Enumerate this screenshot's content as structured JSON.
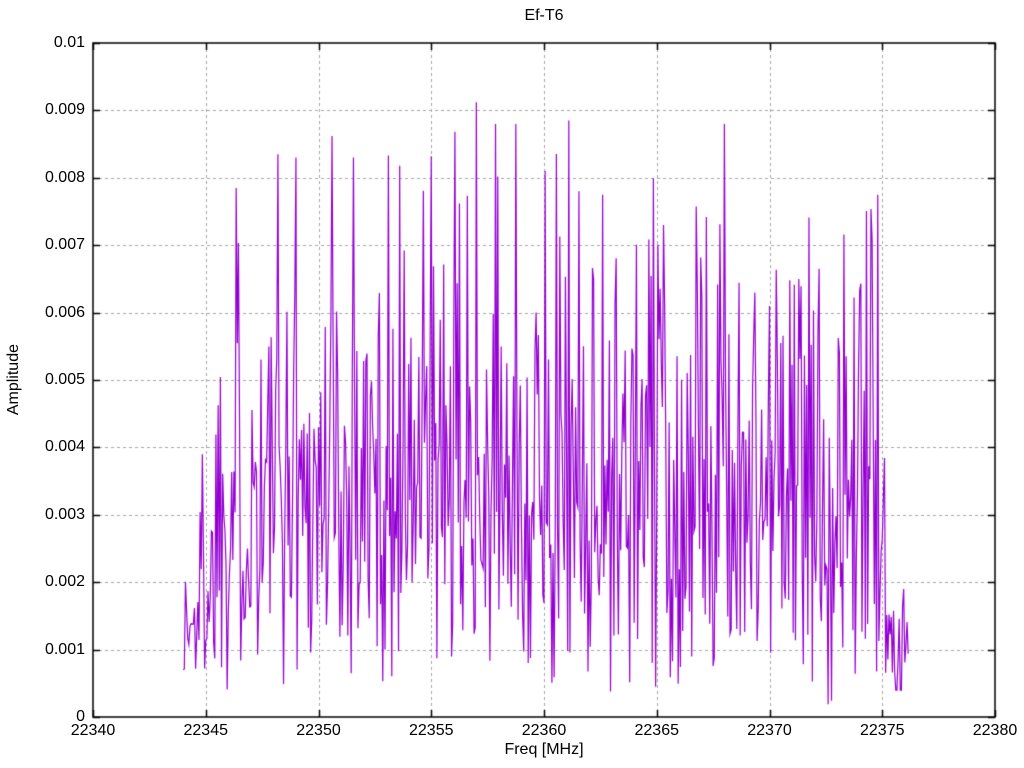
{
  "window": {
    "background": "#ffffff"
  },
  "chart_data": {
    "type": "line",
    "title": "Ef-T6",
    "xlabel": "Freq [MHz]",
    "ylabel": "Amplitude",
    "xlim": [
      22340,
      22380
    ],
    "ylim": [
      0,
      0.01
    ],
    "x_tick_values": [
      22340,
      22345,
      22350,
      22355,
      22360,
      22365,
      22370,
      22375,
      22380
    ],
    "x_tick_labels": [
      "22340",
      "22345",
      "22350",
      "22355",
      "22360",
      "22365",
      "22370",
      "22375",
      "22380"
    ],
    "y_tick_values": [
      0,
      0.001,
      0.002,
      0.003,
      0.004,
      0.005,
      0.006,
      0.007,
      0.008,
      0.009,
      0.01
    ],
    "y_tick_labels": [
      "0",
      "0.001",
      "0.002",
      "0.003",
      "0.004",
      "0.005",
      "0.006",
      "0.007",
      "0.008",
      "0.009",
      "0.01"
    ],
    "grid": true,
    "grid_style": "dashed",
    "legend": "none",
    "line_color": "#9400d3",
    "grid_color": "#a6a6a6",
    "axis_color": "#000000",
    "series": [
      {
        "name": "Ef-T6",
        "description": "dense noisy amplitude spectrum, connected line",
        "x_start": 22344.0,
        "x_end": 22376.15,
        "x_step": 0.05,
        "seed": 1337,
        "noise_model": "rayleigh",
        "segments": [
          {
            "from": 22344.0,
            "to": 22344.6,
            "sigma": 0.0011,
            "floor": 0.0004,
            "cap": 0.003
          },
          {
            "from": 22344.6,
            "to": 22345.4,
            "sigma": 0.0017,
            "floor": 0.0003,
            "cap": 0.0042
          },
          {
            "from": 22345.4,
            "to": 22375.1,
            "sigma": 0.0028,
            "floor": 5e-05,
            "cap": 0.0088
          },
          {
            "from": 22375.1,
            "to": 22376.15,
            "sigma": 0.001,
            "floor": 0.0004,
            "cap": 0.0029
          }
        ],
        "notable_peaks": [
          {
            "x": 22346.35,
            "y": 0.00785
          },
          {
            "x": 22348.2,
            "y": 0.00835
          },
          {
            "x": 22349.0,
            "y": 0.0083
          },
          {
            "x": 22350.6,
            "y": 0.00862
          },
          {
            "x": 22351.55,
            "y": 0.0083
          },
          {
            "x": 22353.6,
            "y": 0.00818
          },
          {
            "x": 22355.0,
            "y": 0.00832
          },
          {
            "x": 22357.0,
            "y": 0.00912
          },
          {
            "x": 22357.95,
            "y": 0.00802
          },
          {
            "x": 22360.05,
            "y": 0.0081
          },
          {
            "x": 22361.1,
            "y": 0.00885
          },
          {
            "x": 22361.55,
            "y": 0.0078
          },
          {
            "x": 22362.6,
            "y": 0.00775
          },
          {
            "x": 22365.3,
            "y": 0.0073
          },
          {
            "x": 22367.8,
            "y": 0.00731
          },
          {
            "x": 22370.9,
            "y": 0.00648
          },
          {
            "x": 22374.8,
            "y": 0.00775
          }
        ]
      }
    ]
  }
}
